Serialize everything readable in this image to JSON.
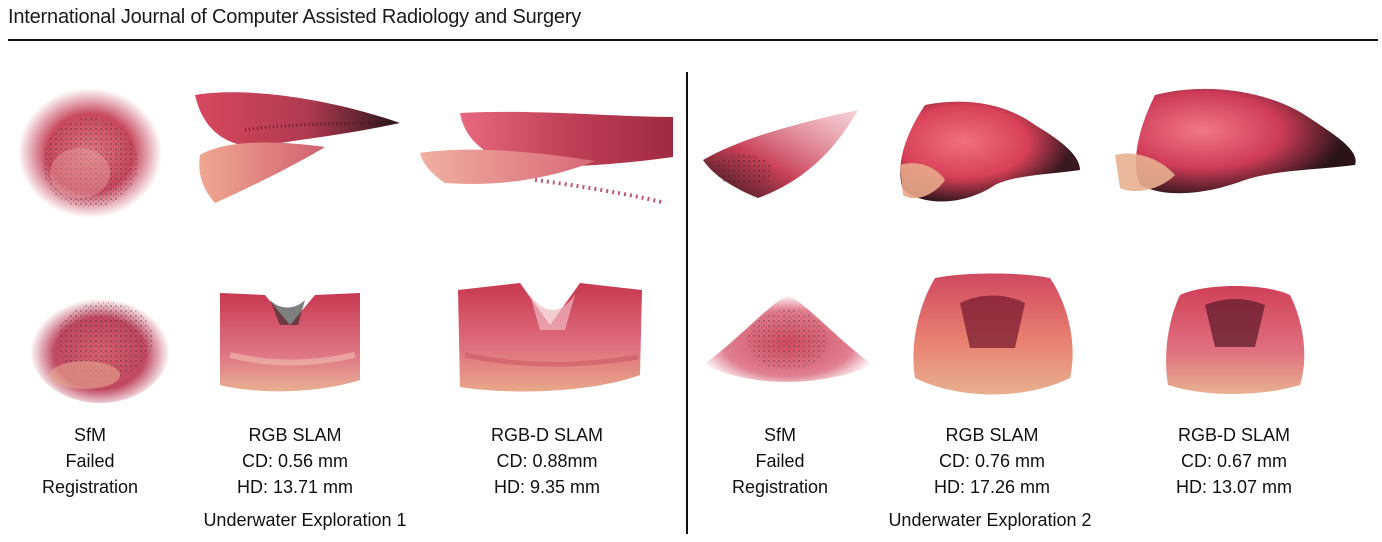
{
  "header": {
    "journal": "International Journal of Computer Assisted Radiology and Surgery"
  },
  "panels": [
    {
      "caption": "Underwater Exploration 1",
      "methods": [
        {
          "name": "SfM",
          "line2": "Failed",
          "line3": "Registration"
        },
        {
          "name": "RGB SLAM",
          "line2": "CD: 0.56 mm",
          "line3": "HD: 13.71 mm"
        },
        {
          "name": "RGB-D SLAM",
          "line2": "CD: 0.88mm",
          "line3": "HD: 9.35 mm"
        }
      ]
    },
    {
      "caption": "Underwater Exploration 2",
      "methods": [
        {
          "name": "SfM",
          "line2": "Failed",
          "line3": "Registration"
        },
        {
          "name": "RGB SLAM",
          "line2": "CD: 0.76 mm",
          "line3": "HD: 17.26 mm"
        },
        {
          "name": "RGB-D SLAM",
          "line2": "CD: 0.67 mm",
          "line3": "HD: 13.07 mm"
        }
      ]
    }
  ],
  "colors": {
    "tissue_red": "#d9405a",
    "tissue_pink": "#e8788a",
    "tissue_peach": "#e8a888",
    "dark_points": "#1a1a1a"
  }
}
